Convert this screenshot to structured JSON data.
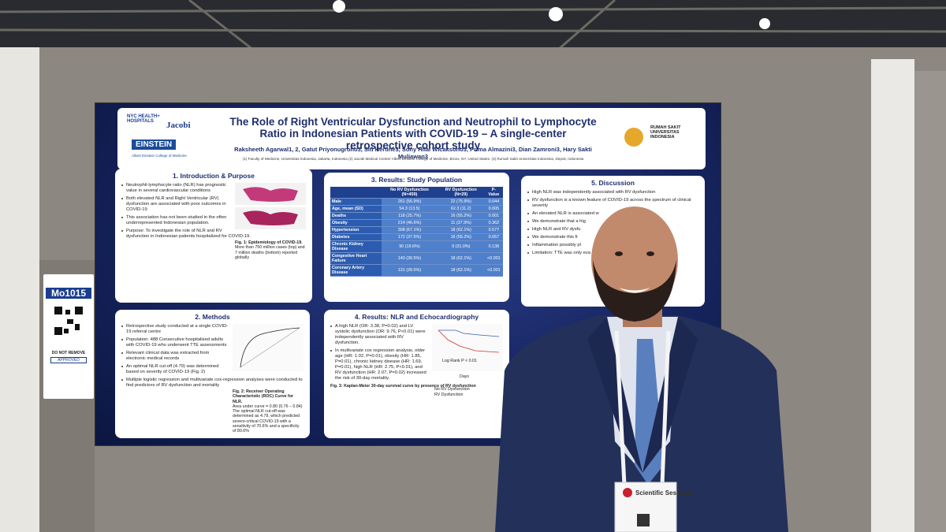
{
  "poster": {
    "title": "The Role of Right Ventricular Dysfunction and Neutrophil to Lymphocyte Ratio in Indonesian Patients with COVID-19 – A single-center retrospective cohort study",
    "authors": "Raksheeth Agarwal1, 2, Gatut Priyonugroho3, Siti Hertine3, Sony Hilal Wicaksono3, Prima Almazini3, Dian Zamroni3, Hary Sakti Muliawan3",
    "affiliations": "(1) Faculty of Medicine, Universitas Indonesia, Jakarta, Indonesia (2) Jacobi Medical Center/ Albert Einstein College of Medicine, Bronx, NY, United States. (3) Rumah Sakit Universitas Indonesia, Depok, Indonesia",
    "logos": [
      "NYC HEALTH+ HOSPITALS",
      "Jacobi",
      "EINSTEIN",
      "Albert Einstein College of Medicine",
      "RUMAH SAKIT UNIVERSITAS INDONESIA"
    ],
    "sections": [
      {
        "heading": "1. Introduction & Purpose",
        "bullets": [
          "Neutrophil-lymphocyte ratio (NLR) has prognostic value in several cardiovascular conditions",
          "Both elevated NLR and Right Ventricular (RV) dysfunction are associated with poor outcomes in COVID-19",
          "This association has not been studied in the often underrepresented Indonesian population.",
          "Purpose: To investigate the role of NLR and RV dysfunction in Indonesian patients hospitalized for COVID-19."
        ],
        "caption": [
          "Fig. 1: Epidemiology of COVID-19.",
          "More than 750 million cases (top) and 7 million deaths (bottom) reported globally"
        ]
      },
      {
        "heading": "2. Methods",
        "bullets": [
          "Retrospective study conducted at a single COVID-19 referral centre",
          "Population: 488 Consecutive hospitalised adults with COVID-19 who underwent TTE assessments",
          "Relevant clinical data was extracted from electronic medical records",
          "An optimal NLR cut-off (4.79) was determined based on severity of COVID-19 (Fig. 2)",
          "Multiple logistic regression and multivariate cox-regression analyses were conducted to find predictors of RV dysfunction and mortality"
        ],
        "caption": [
          "Fig. 2: Receiver Operating Characteristic (ROC) Curve for NLR.",
          "Area under curve = 0.80 (0.76 – 0.84) The optimal NLR cut-off was determined as 4.79, which predicted severe-critical COVID-19 with a sensitivity of 70.6% and a specificity of 80.6%"
        ]
      },
      {
        "heading": "3. Results: Study Population",
        "bullets": [],
        "caption": []
      },
      {
        "heading": "4. Results: NLR and Echocardiography",
        "bullets": [
          "A high NLR (OR: 3.38, P=0.02) and LV systolic dysfunction (OR: 9.76, P<0.01) were independently associated with RV dysfunction.",
          "In multivariate cox regression analysis, older age (HR: 1.02, P=0.01), obesity (HR: 1.85, P=0.01), chronic kidney disease (HR: 1.69, P=0.01), high NLR (HR: 2.75, P<0.01), and RV dysfunction (HR: 2.07, P=0.02) increased the risk of 30-day mortality."
        ],
        "caption": [
          "Fig. 3: Kaplan-Meier 30-day survival curve by presence of RV dysfunction"
        ]
      },
      {
        "heading": "5. Discussion",
        "bullets": [
          "High NLR was independently associated with RV dysfunction",
          "RV dysfunction is a known feature of COVID-19 across the spectrum of clinical severity",
          "An elevated NLR is associated w",
          "We demonstrate that a hig",
          "High NLR and RV dysfu",
          "We demonstrate this fi",
          "Inflammation possibly pl",
          "Limitation: TTE was only eva"
        ],
        "caption": []
      }
    ],
    "km_legend": [
      "No RV Dysfunction",
      "RV Dysfunction"
    ],
    "km_text": [
      "Log Rank P < 0.01",
      "Days"
    ],
    "table": {
      "header": [
        "No RV Dysfunction (N=459)",
        "RV Dysfunction (N=29)",
        "P-Value"
      ],
      "rows": [
        [
          "Male",
          "261 (56.9%)",
          "22 (75.9%)",
          "0.044"
        ],
        [
          "Age, mean (SD)",
          "54.3 (13.5)",
          "62.3 (11.2)",
          "0.005"
        ],
        [
          "Deaths",
          "118 (25.7%)",
          "16 (55.2%)",
          "0.001"
        ],
        [
          "Obesity",
          "214 (46.6%)",
          "11 (37.9%)",
          "0.362"
        ],
        [
          "Hypertension",
          "308 (67.1%)",
          "18 (62.1%)",
          "0.577"
        ],
        [
          "Diabetes",
          "172 (37.5%)",
          "16 (55.2%)",
          "0.057"
        ],
        [
          "Chronic Kidney Disease",
          "90 (19.6%)",
          "9 (31.0%)",
          "0.138"
        ],
        [
          "Congestive Heart Failure",
          "140 (30.5%)",
          "18 (62.1%)",
          "<0.001"
        ],
        [
          "Coronary Artery Disease",
          "131 (28.5%)",
          "18 (62.1%)",
          "<0.001"
        ]
      ]
    }
  },
  "board_badge": {
    "code": "Mo1015",
    "notice": "DO NOT REMOVE",
    "status": "APPROVED"
  },
  "name_badge": {
    "event": "Scientific Sessions"
  }
}
